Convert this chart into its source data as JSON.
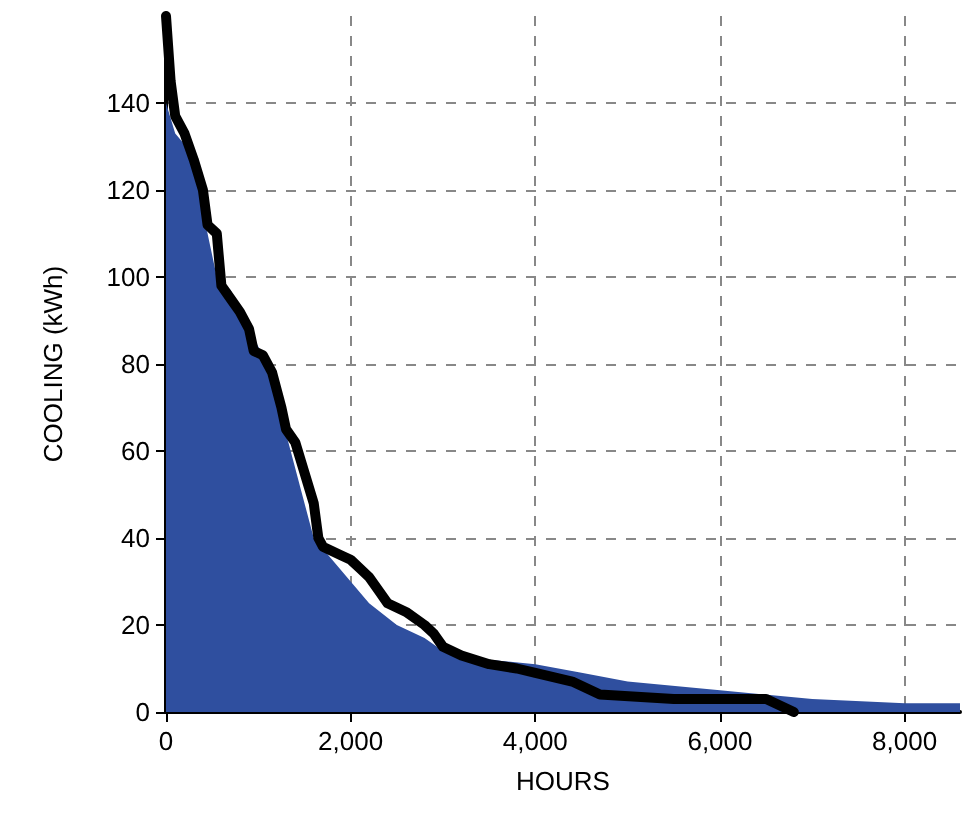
{
  "chart_data": {
    "type": "line",
    "xlabel": "HOURS",
    "ylabel": "COOLING (kWh)",
    "xlim": [
      0,
      8600
    ],
    "ylim": [
      0,
      160
    ],
    "xticks": [
      0,
      {
        "value": 2000,
        "label": "2,000"
      },
      {
        "value": 4000,
        "label": "4,000"
      },
      {
        "value": 6000,
        "label": "6,000"
      },
      {
        "value": 8000,
        "label": "8,000"
      }
    ],
    "yticks": [
      0,
      20,
      40,
      60,
      80,
      100,
      120,
      140
    ],
    "grid": true,
    "marker": "none",
    "line_style": "solid",
    "series": [
      {
        "type": "area",
        "color": "#2f4f9f",
        "x": [
          0,
          100,
          300,
          400,
          550,
          700,
          900,
          1100,
          1300,
          1500,
          1600,
          1800,
          2000,
          2200,
          2500,
          2800,
          3000,
          3500,
          4000,
          4500,
          5000,
          6000,
          7000,
          8000,
          8600
        ],
        "values": [
          140,
          133,
          128,
          115,
          100,
          97,
          88,
          80,
          64,
          48,
          40,
          35,
          30,
          25,
          20,
          17,
          14,
          12,
          11,
          9,
          7,
          5,
          3,
          2,
          2
        ]
      },
      {
        "type": "line",
        "color": "#000000",
        "x": [
          0,
          50,
          100,
          200,
          300,
          400,
          450,
          550,
          600,
          700,
          800,
          900,
          950,
          1050,
          1150,
          1250,
          1300,
          1400,
          1500,
          1600,
          1650,
          1700,
          1900,
          2000,
          2100,
          2200,
          2300,
          2400,
          2600,
          2800,
          2900,
          3000,
          3200,
          3500,
          3800,
          4000,
          4400,
          4700,
          5500,
          6500,
          6800
        ],
        "values": [
          160,
          145,
          137,
          133,
          127,
          120,
          112,
          110,
          98,
          95,
          92,
          88,
          83,
          82,
          78,
          70,
          65,
          62,
          55,
          48,
          40,
          38,
          36,
          35,
          33,
          31,
          28,
          25,
          23,
          20,
          18,
          15,
          13,
          11,
          10,
          9,
          7,
          4,
          3,
          3,
          0
        ]
      }
    ]
  }
}
